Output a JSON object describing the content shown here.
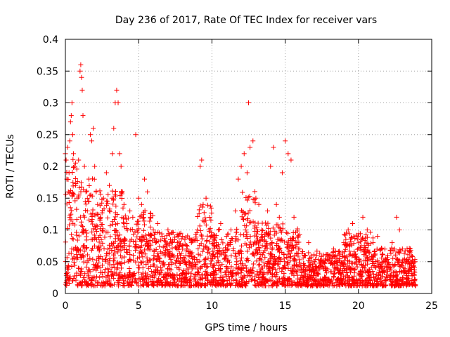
{
  "chart_data": {
    "type": "scatter",
    "title": "Day 236 of 2017, Rate Of TEC Index for receiver vars",
    "xlabel": "GPS time / hours",
    "ylabel": "ROTI / TECUs",
    "xlim": [
      0,
      25
    ],
    "ylim": [
      0,
      0.4
    ],
    "xticks": [
      0,
      5,
      10,
      15,
      20,
      25
    ],
    "yticks": [
      0,
      0.05,
      0.1,
      0.15,
      0.2,
      0.25,
      0.3,
      0.35,
      0.4
    ],
    "grid": true,
    "legend": "none",
    "marker": "+",
    "color": "#ff0000",
    "series": [
      {
        "points": [
          [
            0.0,
            0.22
          ],
          [
            0.05,
            0.21
          ],
          [
            0.1,
            0.18
          ],
          [
            0.15,
            0.23
          ],
          [
            0.2,
            0.16
          ],
          [
            0.25,
            0.19
          ],
          [
            0.3,
            0.24
          ],
          [
            0.35,
            0.27
          ],
          [
            0.4,
            0.28
          ],
          [
            0.45,
            0.3
          ],
          [
            0.5,
            0.25
          ],
          [
            0.55,
            0.22
          ],
          [
            0.6,
            0.2
          ],
          [
            0.7,
            0.17
          ],
          [
            0.8,
            0.15
          ],
          [
            0.9,
            0.21
          ],
          [
            1.0,
            0.35
          ],
          [
            1.05,
            0.36
          ],
          [
            1.1,
            0.34
          ],
          [
            1.15,
            0.32
          ],
          [
            1.2,
            0.28
          ],
          [
            1.3,
            0.2
          ],
          [
            1.4,
            0.16
          ],
          [
            1.5,
            0.13
          ],
          [
            1.6,
            0.18
          ],
          [
            1.7,
            0.25
          ],
          [
            1.8,
            0.24
          ],
          [
            1.9,
            0.26
          ],
          [
            2.0,
            0.2
          ],
          [
            2.1,
            0.16
          ],
          [
            2.2,
            0.14
          ],
          [
            2.4,
            0.12
          ],
          [
            2.6,
            0.15
          ],
          [
            2.8,
            0.19
          ],
          [
            3.0,
            0.17
          ],
          [
            3.2,
            0.22
          ],
          [
            3.3,
            0.26
          ],
          [
            3.4,
            0.3
          ],
          [
            3.5,
            0.32
          ],
          [
            3.6,
            0.3
          ],
          [
            3.7,
            0.22
          ],
          [
            3.8,
            0.2
          ],
          [
            3.9,
            0.16
          ],
          [
            4.0,
            0.14
          ],
          [
            4.2,
            0.11
          ],
          [
            4.4,
            0.13
          ],
          [
            4.6,
            0.12
          ],
          [
            4.8,
            0.25
          ],
          [
            5.0,
            0.15
          ],
          [
            5.2,
            0.14
          ],
          [
            5.4,
            0.18
          ],
          [
            5.6,
            0.16
          ],
          [
            5.8,
            0.12
          ],
          [
            6.0,
            0.1
          ],
          [
            6.3,
            0.11
          ],
          [
            6.6,
            0.09
          ],
          [
            7.0,
            0.1
          ],
          [
            7.3,
            0.08
          ],
          [
            7.6,
            0.07
          ],
          [
            8.0,
            0.09
          ],
          [
            8.3,
            0.07
          ],
          [
            8.6,
            0.08
          ],
          [
            9.0,
            0.1
          ],
          [
            9.2,
            0.2
          ],
          [
            9.3,
            0.21
          ],
          [
            9.4,
            0.14
          ],
          [
            9.6,
            0.15
          ],
          [
            9.8,
            0.1
          ],
          [
            10.0,
            0.09
          ],
          [
            10.3,
            0.08
          ],
          [
            10.6,
            0.11
          ],
          [
            11.0,
            0.09
          ],
          [
            11.3,
            0.1
          ],
          [
            11.6,
            0.13
          ],
          [
            11.8,
            0.18
          ],
          [
            12.0,
            0.2
          ],
          [
            12.2,
            0.22
          ],
          [
            12.4,
            0.19
          ],
          [
            12.5,
            0.3
          ],
          [
            12.6,
            0.23
          ],
          [
            12.8,
            0.24
          ],
          [
            13.0,
            0.15
          ],
          [
            13.2,
            0.14
          ],
          [
            13.4,
            0.1
          ],
          [
            13.6,
            0.09
          ],
          [
            13.8,
            0.13
          ],
          [
            14.0,
            0.2
          ],
          [
            14.2,
            0.23
          ],
          [
            14.4,
            0.14
          ],
          [
            14.6,
            0.12
          ],
          [
            14.8,
            0.19
          ],
          [
            15.0,
            0.24
          ],
          [
            15.2,
            0.22
          ],
          [
            15.4,
            0.21
          ],
          [
            15.6,
            0.12
          ],
          [
            15.8,
            0.08
          ],
          [
            16.0,
            0.07
          ],
          [
            16.3,
            0.06
          ],
          [
            16.6,
            0.08
          ],
          [
            17.0,
            0.05
          ],
          [
            17.3,
            0.04
          ],
          [
            17.6,
            0.05
          ],
          [
            18.0,
            0.06
          ],
          [
            18.3,
            0.07
          ],
          [
            18.6,
            0.06
          ],
          [
            19.0,
            0.08
          ],
          [
            19.3,
            0.1
          ],
          [
            19.6,
            0.11
          ],
          [
            20.0,
            0.09
          ],
          [
            20.3,
            0.12
          ],
          [
            20.6,
            0.1
          ],
          [
            21.0,
            0.08
          ],
          [
            21.3,
            0.09
          ],
          [
            21.6,
            0.07
          ],
          [
            22.0,
            0.06
          ],
          [
            22.3,
            0.08
          ],
          [
            22.6,
            0.12
          ],
          [
            22.8,
            0.1
          ],
          [
            23.0,
            0.07
          ],
          [
            23.3,
            0.05
          ],
          [
            23.6,
            0.04
          ],
          [
            23.8,
            0.03
          ]
        ]
      }
    ],
    "dense_band": {
      "x_from": 0,
      "x_to": 23.9,
      "note_free": true
    }
  }
}
